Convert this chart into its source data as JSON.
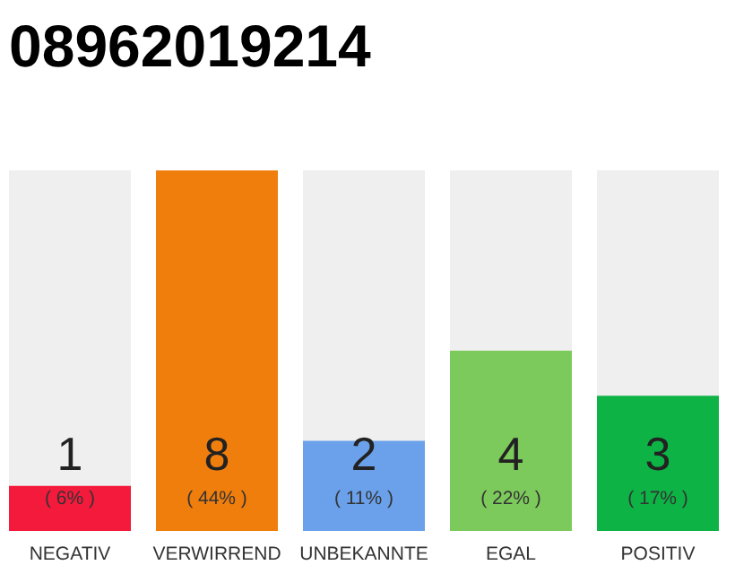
{
  "chart_data": {
    "type": "bar",
    "title": "08962019214",
    "categories": [
      "NEGATIV",
      "VERWIRREND",
      "UNBEKANNTE",
      "EGAL",
      "POSITIV"
    ],
    "values": [
      1,
      8,
      2,
      4,
      3
    ],
    "colors": [
      "#f31a3c",
      "#f07e0c",
      "#6aa1ea",
      "#7dca5c",
      "#0db345"
    ],
    "data_labels": true,
    "annotations": [
      "( 6% )",
      "( 44% )",
      "( 11% )",
      "( 22% )",
      "( 17% )"
    ]
  }
}
